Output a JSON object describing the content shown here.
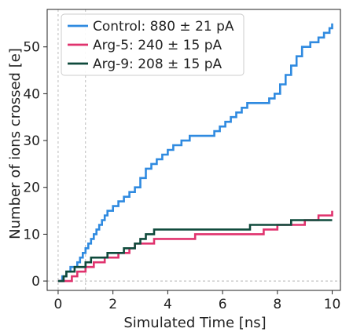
{
  "chart_data": {
    "type": "line",
    "title": "",
    "xlabel": "Simulated Time [ns]",
    "ylabel": "Number of ions crossed [e]",
    "xlim": [
      -0.4,
      10.3
    ],
    "ylim": [
      -2,
      58
    ],
    "xticks": [
      0,
      2,
      4,
      6,
      8,
      10
    ],
    "yticks": [
      0,
      10,
      20,
      30,
      40,
      50
    ],
    "grid": false,
    "reference_lines": {
      "vertical_x": [
        0,
        1
      ],
      "horizontal_y": [
        0
      ],
      "style": "dashed"
    },
    "legend_position": "top-left",
    "series": [
      {
        "name": "Control: 880 ± 21 pA",
        "color": "#2f8ae0",
        "points": [
          [
            0,
            0
          ],
          [
            0.15,
            1
          ],
          [
            0.3,
            2
          ],
          [
            0.45,
            3
          ],
          [
            0.6,
            3
          ],
          [
            0.7,
            4
          ],
          [
            0.8,
            5
          ],
          [
            0.9,
            6
          ],
          [
            1.0,
            7
          ],
          [
            1.1,
            8
          ],
          [
            1.2,
            9
          ],
          [
            1.3,
            10
          ],
          [
            1.4,
            11
          ],
          [
            1.5,
            12
          ],
          [
            1.6,
            13
          ],
          [
            1.7,
            14
          ],
          [
            1.8,
            15
          ],
          [
            2.0,
            16
          ],
          [
            2.2,
            17
          ],
          [
            2.4,
            18
          ],
          [
            2.6,
            19
          ],
          [
            2.8,
            20
          ],
          [
            3.0,
            22
          ],
          [
            3.2,
            24
          ],
          [
            3.4,
            25
          ],
          [
            3.6,
            26
          ],
          [
            3.8,
            27
          ],
          [
            4.0,
            28
          ],
          [
            4.2,
            29
          ],
          [
            4.5,
            30
          ],
          [
            4.8,
            31
          ],
          [
            5.5,
            31
          ],
          [
            5.7,
            32
          ],
          [
            5.9,
            33
          ],
          [
            6.1,
            34
          ],
          [
            6.3,
            35
          ],
          [
            6.5,
            36
          ],
          [
            6.7,
            37
          ],
          [
            6.9,
            38
          ],
          [
            7.5,
            38
          ],
          [
            7.7,
            39
          ],
          [
            7.9,
            40
          ],
          [
            8.1,
            42
          ],
          [
            8.3,
            44
          ],
          [
            8.5,
            46
          ],
          [
            8.7,
            48
          ],
          [
            8.9,
            50
          ],
          [
            9.2,
            51
          ],
          [
            9.5,
            52
          ],
          [
            9.7,
            53
          ],
          [
            9.9,
            54
          ],
          [
            10,
            55
          ]
        ]
      },
      {
        "name": "Arg-5: 240 ± 15 pA",
        "color": "#e0336e",
        "points": [
          [
            0,
            0
          ],
          [
            0.4,
            0
          ],
          [
            0.5,
            1
          ],
          [
            0.7,
            2
          ],
          [
            1.0,
            3
          ],
          [
            1.3,
            4
          ],
          [
            1.7,
            5
          ],
          [
            2.2,
            6
          ],
          [
            2.6,
            7
          ],
          [
            2.8,
            8
          ],
          [
            3.2,
            8
          ],
          [
            3.5,
            9
          ],
          [
            4.8,
            9
          ],
          [
            5.0,
            10
          ],
          [
            7.0,
            10
          ],
          [
            7.5,
            11
          ],
          [
            8.0,
            12
          ],
          [
            9.0,
            13
          ],
          [
            9.5,
            14
          ],
          [
            10,
            15
          ]
        ]
      },
      {
        "name": "Arg-9: 208 ± 15 pA",
        "color": "#0f4a3c",
        "points": [
          [
            0,
            0
          ],
          [
            0.2,
            1
          ],
          [
            0.3,
            2
          ],
          [
            0.6,
            3
          ],
          [
            1.0,
            4
          ],
          [
            1.2,
            5
          ],
          [
            1.8,
            6
          ],
          [
            2.4,
            7
          ],
          [
            2.8,
            8
          ],
          [
            3.0,
            9
          ],
          [
            3.2,
            10
          ],
          [
            3.4,
            10
          ],
          [
            3.5,
            11
          ],
          [
            4.3,
            11
          ],
          [
            4.5,
            11
          ],
          [
            5.5,
            11
          ],
          [
            6.0,
            11
          ],
          [
            6.5,
            11
          ],
          [
            7.0,
            12
          ],
          [
            7.5,
            12
          ],
          [
            8.0,
            12
          ],
          [
            8.5,
            13
          ],
          [
            10,
            13
          ]
        ]
      }
    ]
  }
}
